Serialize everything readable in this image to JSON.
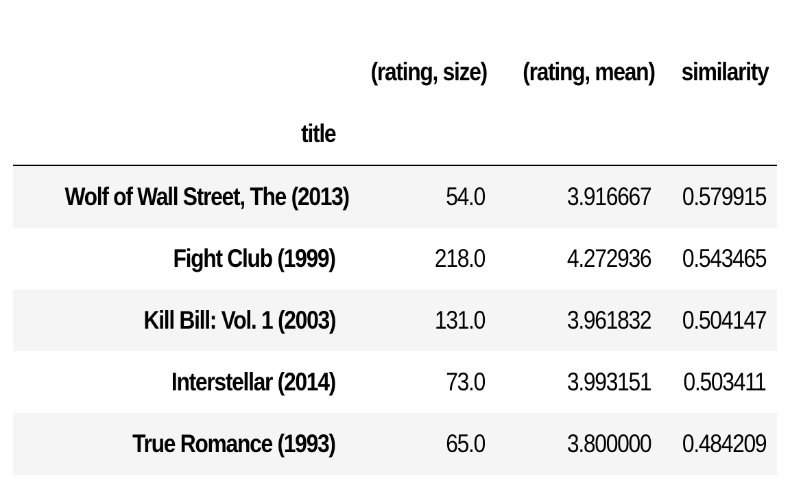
{
  "table": {
    "columns": [
      "(rating, size)",
      "(rating, mean)",
      "similarity"
    ],
    "index_name": "title",
    "rows": [
      {
        "title": "Wolf of Wall Street, The (2013)",
        "size": "54.0",
        "mean": "3.916667",
        "similarity": "0.579915"
      },
      {
        "title": "Fight Club (1999)",
        "size": "218.0",
        "mean": "4.272936",
        "similarity": "0.543465"
      },
      {
        "title": "Kill Bill: Vol. 1 (2003)",
        "size": "131.0",
        "mean": "3.961832",
        "similarity": "0.504147"
      },
      {
        "title": "Interstellar (2014)",
        "size": "73.0",
        "mean": "3.993151",
        "similarity": "0.503411"
      },
      {
        "title": "True Romance (1993)",
        "size": "65.0",
        "mean": "3.800000",
        "similarity": "0.484209"
      }
    ]
  },
  "colors": {
    "stripe": "#f5f5f5",
    "text": "#000000",
    "rule": "#000000"
  }
}
